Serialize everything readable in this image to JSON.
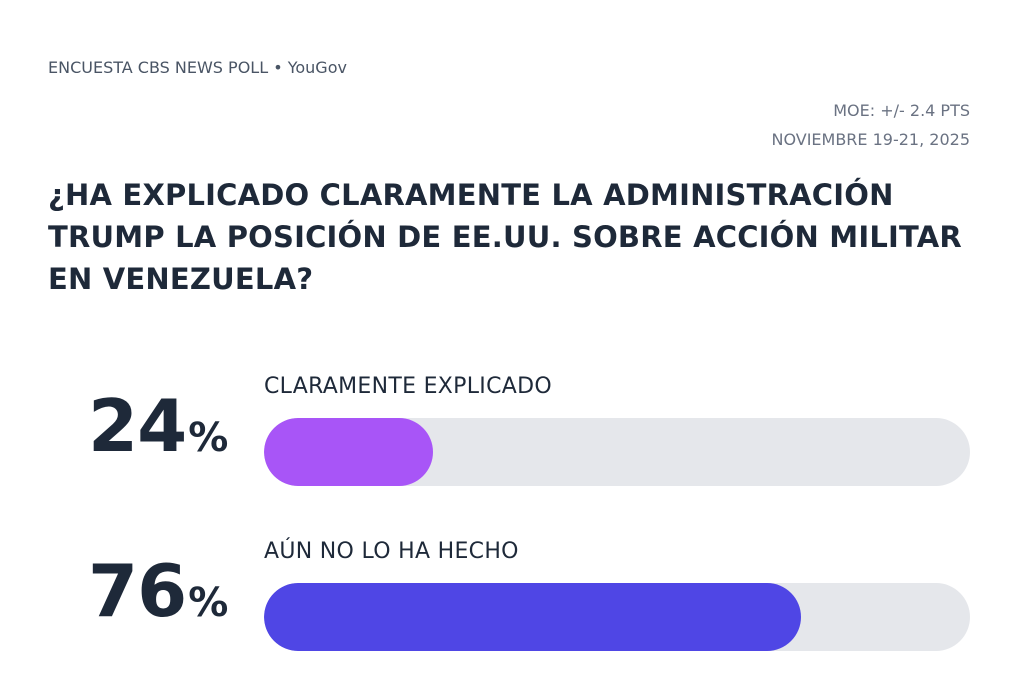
{
  "header": {
    "source": "ENCUESTA CBS NEWS POLL • YouGov",
    "moe": "MOE:  +/- 2.4 PTS",
    "dates": "NOVIEMBRE 19-21, 2025"
  },
  "title": "¿HA EXPLICADO CLARAMENTE LA ADMINISTRACIÓN TRUMP LA POSICIÓN DE EE.UU. SOBRE ACCIÓN MILITAR EN VENEZUELA?",
  "rows": [
    {
      "label": "CLARAMENTE EXPLICADO",
      "value": "24",
      "sign": "%",
      "width": "24%",
      "color": "#a855f7"
    },
    {
      "label": "AÚN NO LO HA HECHO",
      "value": "76",
      "sign": "%",
      "width": "76%",
      "color": "#4f46e5"
    }
  ],
  "chart_data": {
    "type": "bar",
    "orientation": "horizontal",
    "title": "¿HA EXPLICADO CLARAMENTE LA ADMINISTRACIÓN TRUMP LA POSICIÓN DE EE.UU. SOBRE ACCIÓN MILITAR EN VENEZUELA?",
    "categories": [
      "CLARAMENTE EXPLICADO",
      "AÚN NO LO HA HECHO"
    ],
    "values": [
      24,
      76
    ],
    "unit": "%",
    "colors": [
      "#a855f7",
      "#4f46e5"
    ],
    "track_color": "#e5e7eb",
    "xlim": [
      0,
      100
    ],
    "grid": false,
    "legend": "none",
    "annotations": [
      "ENCUESTA CBS NEWS POLL • YouGov",
      "MOE:  +/- 2.4 PTS",
      "NOVIEMBRE 19-21, 2025"
    ]
  }
}
